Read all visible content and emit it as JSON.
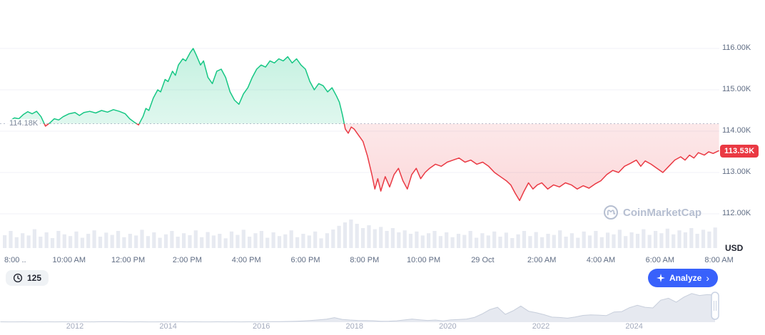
{
  "ui": {
    "baseline_label": "114.18K",
    "last_price_label": "113.53K",
    "axis_unit": "USD",
    "watermark": "CoinMarketCap",
    "history_count": "125",
    "analyze_label": "Analyze",
    "analyze_chevron": "›"
  },
  "chart_data": {
    "type": "line",
    "title": "24h price chart with previous-close baseline (CoinMarketCap style)",
    "unit": "USD (thousands)",
    "baseline_value": 114.18,
    "last_price": 113.53,
    "x_unit": "hours since 8:00 AM",
    "x_range": [
      0,
      24
    ],
    "ylim": [
      111.8,
      116.4
    ],
    "grid": true,
    "y_ticks": [
      {
        "label": "116.00K",
        "value": 116
      },
      {
        "label": "115.00K",
        "value": 115
      },
      {
        "label": "114.00K",
        "value": 114
      },
      {
        "label": "113.00K",
        "value": 113
      },
      {
        "label": "112.00K",
        "value": 112
      }
    ],
    "x_ticks": [
      {
        "label": "8:00 ..",
        "t": 0,
        "align": "left"
      },
      {
        "label": "10:00 AM",
        "t": 2
      },
      {
        "label": "12:00 PM",
        "t": 4
      },
      {
        "label": "2:00 PM",
        "t": 6
      },
      {
        "label": "4:00 PM",
        "t": 8
      },
      {
        "label": "6:00 PM",
        "t": 10
      },
      {
        "label": "8:00 PM",
        "t": 12
      },
      {
        "label": "10:00 PM",
        "t": 14
      },
      {
        "label": "29 Oct",
        "t": 16
      },
      {
        "label": "2:00 AM",
        "t": 18
      },
      {
        "label": "4:00 AM",
        "t": 20
      },
      {
        "label": "6:00 AM",
        "t": 22
      },
      {
        "label": "8:00 AM",
        "t": 24
      }
    ],
    "points": [
      [
        0,
        114.25
      ],
      [
        0.15,
        114.32
      ],
      [
        0.3,
        114.3
      ],
      [
        0.45,
        114.4
      ],
      [
        0.6,
        114.47
      ],
      [
        0.75,
        114.42
      ],
      [
        0.9,
        114.48
      ],
      [
        1.05,
        114.35
      ],
      [
        1.2,
        114.12
      ],
      [
        1.35,
        114.2
      ],
      [
        1.5,
        114.3
      ],
      [
        1.65,
        114.27
      ],
      [
        1.8,
        114.35
      ],
      [
        2,
        114.42
      ],
      [
        2.2,
        114.45
      ],
      [
        2.35,
        114.38
      ],
      [
        2.5,
        114.45
      ],
      [
        2.7,
        114.48
      ],
      [
        2.9,
        114.44
      ],
      [
        3.1,
        114.5
      ],
      [
        3.3,
        114.46
      ],
      [
        3.5,
        114.52
      ],
      [
        3.7,
        114.48
      ],
      [
        3.9,
        114.42
      ],
      [
        4.05,
        114.3
      ],
      [
        4.2,
        114.22
      ],
      [
        4.35,
        114.15
      ],
      [
        4.5,
        114.35
      ],
      [
        4.6,
        114.55
      ],
      [
        4.7,
        114.5
      ],
      [
        4.85,
        114.8
      ],
      [
        5,
        115
      ],
      [
        5.1,
        114.95
      ],
      [
        5.25,
        115.25
      ],
      [
        5.35,
        115.2
      ],
      [
        5.5,
        115.45
      ],
      [
        5.6,
        115.35
      ],
      [
        5.7,
        115.6
      ],
      [
        5.85,
        115.75
      ],
      [
        5.95,
        115.7
      ],
      [
        6.1,
        115.9
      ],
      [
        6.2,
        116
      ],
      [
        6.3,
        115.85
      ],
      [
        6.45,
        115.6
      ],
      [
        6.55,
        115.7
      ],
      [
        6.7,
        115.3
      ],
      [
        6.85,
        115.15
      ],
      [
        7,
        115.45
      ],
      [
        7.15,
        115.5
      ],
      [
        7.3,
        115.3
      ],
      [
        7.45,
        114.95
      ],
      [
        7.6,
        114.75
      ],
      [
        7.75,
        114.65
      ],
      [
        7.9,
        114.9
      ],
      [
        8.05,
        115.05
      ],
      [
        8.2,
        115.3
      ],
      [
        8.35,
        115.5
      ],
      [
        8.5,
        115.6
      ],
      [
        8.65,
        115.55
      ],
      [
        8.8,
        115.7
      ],
      [
        8.95,
        115.65
      ],
      [
        9.1,
        115.75
      ],
      [
        9.25,
        115.7
      ],
      [
        9.4,
        115.8
      ],
      [
        9.55,
        115.65
      ],
      [
        9.7,
        115.75
      ],
      [
        9.85,
        115.6
      ],
      [
        10,
        115.5
      ],
      [
        10.15,
        115.2
      ],
      [
        10.3,
        115
      ],
      [
        10.45,
        115.15
      ],
      [
        10.6,
        115.1
      ],
      [
        10.75,
        114.95
      ],
      [
        10.9,
        115.05
      ],
      [
        11.05,
        114.85
      ],
      [
        11.15,
        114.7
      ],
      [
        11.25,
        114.4
      ],
      [
        11.35,
        114.05
      ],
      [
        11.45,
        113.95
      ],
      [
        11.55,
        114.1
      ],
      [
        11.65,
        114.05
      ],
      [
        11.8,
        113.9
      ],
      [
        11.95,
        113.75
      ],
      [
        12.1,
        113.4
      ],
      [
        12.25,
        112.95
      ],
      [
        12.35,
        112.6
      ],
      [
        12.45,
        112.85
      ],
      [
        12.55,
        112.55
      ],
      [
        12.7,
        112.9
      ],
      [
        12.85,
        112.65
      ],
      [
        13,
        112.95
      ],
      [
        13.15,
        113.1
      ],
      [
        13.3,
        112.8
      ],
      [
        13.45,
        112.6
      ],
      [
        13.6,
        112.95
      ],
      [
        13.75,
        113.1
      ],
      [
        13.9,
        112.85
      ],
      [
        14.05,
        113
      ],
      [
        14.2,
        113.1
      ],
      [
        14.4,
        113.2
      ],
      [
        14.6,
        113.15
      ],
      [
        14.8,
        113.25
      ],
      [
        15,
        113.3
      ],
      [
        15.2,
        113.35
      ],
      [
        15.4,
        113.25
      ],
      [
        15.6,
        113.3
      ],
      [
        15.8,
        113.2
      ],
      [
        16,
        113.25
      ],
      [
        16.2,
        113.15
      ],
      [
        16.4,
        113
      ],
      [
        16.6,
        112.9
      ],
      [
        16.8,
        112.8
      ],
      [
        16.95,
        112.7
      ],
      [
        17.1,
        112.5
      ],
      [
        17.25,
        112.32
      ],
      [
        17.4,
        112.55
      ],
      [
        17.55,
        112.75
      ],
      [
        17.7,
        112.6
      ],
      [
        17.85,
        112.7
      ],
      [
        18,
        112.75
      ],
      [
        18.2,
        112.6
      ],
      [
        18.4,
        112.7
      ],
      [
        18.6,
        112.65
      ],
      [
        18.8,
        112.75
      ],
      [
        19,
        112.7
      ],
      [
        19.2,
        112.6
      ],
      [
        19.4,
        112.68
      ],
      [
        19.6,
        112.62
      ],
      [
        19.8,
        112.72
      ],
      [
        20,
        112.8
      ],
      [
        20.2,
        112.95
      ],
      [
        20.4,
        113.05
      ],
      [
        20.6,
        113
      ],
      [
        20.8,
        113.15
      ],
      [
        21,
        113.22
      ],
      [
        21.2,
        113.3
      ],
      [
        21.35,
        113.15
      ],
      [
        21.5,
        113.28
      ],
      [
        21.7,
        113.2
      ],
      [
        21.9,
        113.1
      ],
      [
        22.1,
        113
      ],
      [
        22.3,
        113.15
      ],
      [
        22.5,
        113.3
      ],
      [
        22.7,
        113.38
      ],
      [
        22.85,
        113.3
      ],
      [
        23,
        113.42
      ],
      [
        23.15,
        113.35
      ],
      [
        23.3,
        113.48
      ],
      [
        23.5,
        113.42
      ],
      [
        23.65,
        113.5
      ],
      [
        23.8,
        113.46
      ],
      [
        24,
        113.53
      ]
    ],
    "volume_norm": [
      0.45,
      0.6,
      0.38,
      0.52,
      0.44,
      0.66,
      0.4,
      0.55,
      0.35,
      0.6,
      0.48,
      0.42,
      0.58,
      0.36,
      0.5,
      0.62,
      0.4,
      0.54,
      0.46,
      0.6,
      0.38,
      0.5,
      0.44,
      0.64,
      0.42,
      0.55,
      0.36,
      0.48,
      0.6,
      0.4,
      0.52,
      0.45,
      0.62,
      0.38,
      0.56,
      0.44,
      0.5,
      0.34,
      0.58,
      0.46,
      0.64,
      0.4,
      0.52,
      0.6,
      0.36,
      0.55,
      0.42,
      0.48,
      0.62,
      0.38,
      0.5,
      0.44,
      0.58,
      0.34,
      0.52,
      0.65,
      0.78,
      0.9,
      1.0,
      0.85,
      0.7,
      0.8,
      0.66,
      0.74,
      0.6,
      0.7,
      0.55,
      0.62,
      0.5,
      0.58,
      0.44,
      0.52,
      0.6,
      0.42,
      0.55,
      0.38,
      0.5,
      0.46,
      0.6,
      0.36,
      0.52,
      0.44,
      0.58,
      0.4,
      0.54,
      0.35,
      0.48,
      0.6,
      0.42,
      0.56,
      0.38,
      0.5,
      0.46,
      0.62,
      0.4,
      0.52,
      0.36,
      0.58,
      0.44,
      0.6,
      0.38,
      0.54,
      0.48,
      0.64,
      0.42,
      0.55,
      0.5,
      0.66,
      0.46,
      0.6,
      0.52,
      0.68,
      0.48,
      0.62,
      0.55,
      0.7,
      0.5,
      0.64,
      0.58,
      0.72
    ],
    "minimap": {
      "start_year": 2010.4,
      "step_years": 0.1667,
      "unit": "relative historical price",
      "year_ticks": [
        2012,
        2014,
        2016,
        2018,
        2020,
        2022,
        2024
      ],
      "values": [
        0.5,
        0.4,
        0.4,
        0.5,
        0.4,
        0.4,
        0.5,
        0.4,
        0.5,
        0.4,
        0.4,
        0.5,
        0.4,
        0.6,
        0.7,
        0.6,
        0.5,
        0.4,
        0.5,
        0.4,
        0.4,
        0.5,
        0.4,
        0.5,
        0.4,
        0.5,
        0.4,
        0.4,
        0.5,
        0.4,
        0.5,
        0.4,
        0.5,
        0.4,
        0.5,
        0.6,
        0.7,
        0.9,
        1.2,
        1.6,
        2.2,
        2.9,
        3.8,
        5.8,
        3.5,
        2.7,
        2.2,
        2,
        1.8,
        1.1,
        1.3,
        1.7,
        2.8,
        4,
        3,
        2.2,
        2.7,
        1.6,
        2.9,
        3.4,
        4,
        6,
        10.5,
        16,
        19,
        10,
        14.5,
        20.5,
        14,
        12,
        9.5,
        6.5,
        6,
        5.1,
        6.6,
        8.6,
        9.3,
        9,
        8.4,
        13,
        13.5,
        18.5,
        21.5,
        19,
        18.2,
        28,
        30.5,
        25.5,
        32,
        36.5,
        34,
        35.2,
        34.6
      ]
    },
    "colors": {
      "up": "#16c784",
      "down": "#ea3943",
      "baseline": "#b8c0cf",
      "grid": "#f0f2f7",
      "volume": "#e7eaf1",
      "axis_text": "#616e85",
      "minimap_fill": "#e6e9f0",
      "minimap_stroke": "#c7cedb",
      "accent_blue": "#3861fb",
      "badge_red": "#ea3943"
    }
  }
}
